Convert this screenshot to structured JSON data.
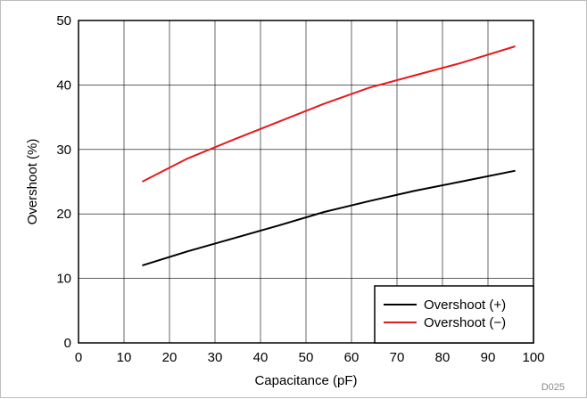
{
  "chart_data": {
    "type": "line",
    "xlabel": "Capacitance (pF)",
    "ylabel": "Overshoot (%)",
    "xlim": [
      0,
      100
    ],
    "ylim": [
      0,
      50
    ],
    "xticks": [
      0,
      10,
      20,
      30,
      40,
      50,
      60,
      70,
      80,
      90,
      100
    ],
    "yticks": [
      0,
      10,
      20,
      30,
      40,
      50
    ],
    "grid": true,
    "legend_position": "bottom-right",
    "series": [
      {
        "name": "Overshoot (+)",
        "color": "#000000",
        "x": [
          14,
          24,
          34,
          44,
          54,
          64,
          74,
          84,
          96
        ],
        "y": [
          12.0,
          14.2,
          16.2,
          18.2,
          20.3,
          22.0,
          23.6,
          25.0,
          26.7
        ]
      },
      {
        "name": "Overshoot (−)",
        "color": "#e41a1c",
        "x": [
          14,
          24,
          34,
          44,
          54,
          64,
          74,
          84,
          96
        ],
        "y": [
          25.0,
          28.6,
          31.5,
          34.3,
          37.1,
          39.6,
          41.5,
          43.4,
          46.0
        ]
      }
    ]
  },
  "figure_code": "D025"
}
